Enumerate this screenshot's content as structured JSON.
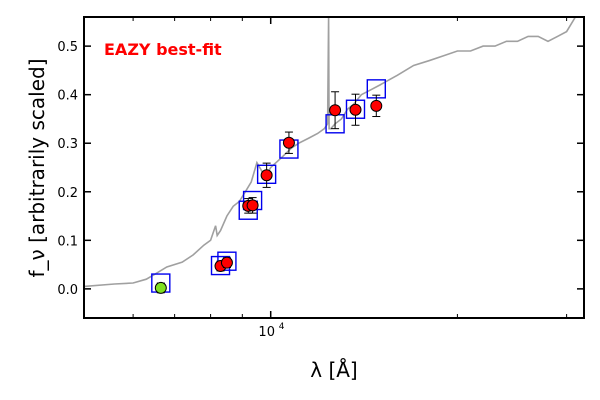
{
  "chart_data": {
    "type": "scatter",
    "title": "",
    "annotation": "EAZY best-fit",
    "xlabel": "λ [Å]",
    "ylabel": "f_ν [arbitrarily scaled]",
    "xscale": "log",
    "xlim": [
      5000,
      32000
    ],
    "ylim": [
      -0.06,
      0.56
    ],
    "yticks": [
      0.0,
      0.1,
      0.2,
      0.3,
      0.4,
      0.5
    ],
    "ytick_labels": [
      "0.0",
      "0.1",
      "0.2",
      "0.3",
      "0.4",
      "0.5"
    ],
    "xtick_major": [
      10000
    ],
    "xtick_labels": [
      {
        "base": "10",
        "exp": "4"
      }
    ],
    "xtick_minor": [
      6000,
      7000,
      8000,
      9000,
      20000,
      30000
    ],
    "colors": {
      "sed_line": "#a0a0a0",
      "observed_fill": "#ff0000",
      "nondetection_fill": "#80e020",
      "model_box": "#0000ee",
      "annotation": "#ff0000"
    },
    "sed_curve": {
      "name": "EAZY best-fit template",
      "x": [
        5000,
        5600,
        6000,
        6300,
        6500,
        6800,
        7200,
        7500,
        7800,
        8000,
        8100,
        8150,
        8200,
        8300,
        8500,
        8700,
        8900,
        9100,
        9300,
        9500,
        9800,
        10000,
        10400,
        10600,
        10800,
        11100,
        11500,
        11900,
        12200,
        12350,
        12400,
        12420,
        12500,
        12700,
        13000,
        13300,
        13600,
        14000,
        14500,
        15000,
        15500,
        16000,
        17000,
        18000,
        19000,
        20000,
        21000,
        22000,
        23000,
        24000,
        25000,
        26000,
        27000,
        28000,
        29000,
        30000,
        31000,
        32000
      ],
      "y": [
        0.005,
        0.01,
        0.012,
        0.02,
        0.03,
        0.045,
        0.055,
        0.07,
        0.09,
        0.1,
        0.12,
        0.13,
        0.11,
        0.12,
        0.15,
        0.17,
        0.18,
        0.2,
        0.22,
        0.26,
        0.23,
        0.25,
        0.27,
        0.28,
        0.29,
        0.3,
        0.31,
        0.32,
        0.33,
        0.34,
        0.56,
        0.33,
        0.33,
        0.34,
        0.35,
        0.37,
        0.38,
        0.4,
        0.41,
        0.42,
        0.43,
        0.44,
        0.46,
        0.47,
        0.48,
        0.49,
        0.49,
        0.5,
        0.5,
        0.51,
        0.51,
        0.52,
        0.52,
        0.51,
        0.52,
        0.53,
        0.56,
        0.56
      ]
    },
    "series": [
      {
        "name": "observed photometry",
        "x": [
          8300,
          8500,
          9200,
          9350,
          9850,
          10700,
          12700,
          13700,
          14800
        ],
        "y": [
          0.047,
          0.054,
          0.171,
          0.172,
          0.234,
          0.301,
          0.368,
          0.369,
          0.377
        ],
        "yerr": [
          0.01,
          0.01,
          0.015,
          0.016,
          0.025,
          0.022,
          0.038,
          0.032,
          0.022
        ]
      },
      {
        "name": "non-detection",
        "x": [
          6650
        ],
        "y": [
          0.002
        ],
        "yerr": [
          0.01
        ]
      },
      {
        "name": "model band flux",
        "x": [
          6650,
          8300,
          8500,
          9200,
          9350,
          9850,
          10700,
          12700,
          13700,
          14800
        ],
        "y": [
          0.012,
          0.048,
          0.057,
          0.162,
          0.182,
          0.236,
          0.288,
          0.34,
          0.37,
          0.412
        ]
      }
    ]
  }
}
